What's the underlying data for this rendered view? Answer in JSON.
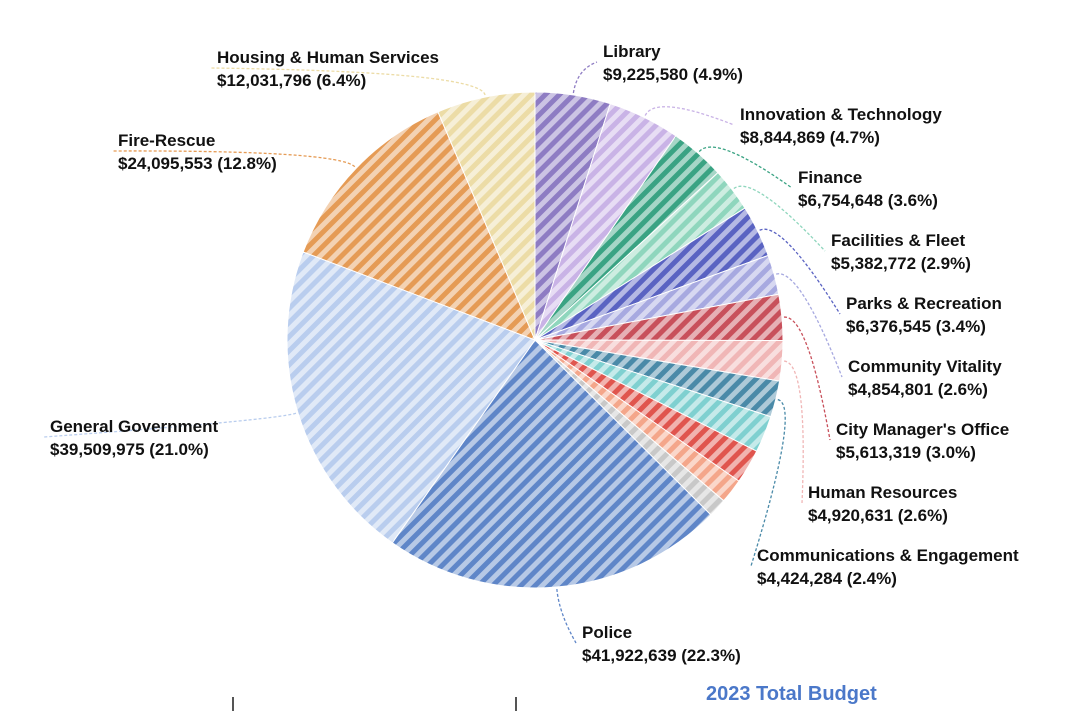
{
  "caption": "2023 Total Budget",
  "chart_data": {
    "type": "pie",
    "title": "",
    "unit": "$",
    "slices": [
      {
        "name": "Library",
        "value": 9225580,
        "value_label": "$9,225,580 (4.9%)",
        "color": "#8e7cc3"
      },
      {
        "name": "Innovation & Technology",
        "value": 8844869,
        "value_label": "$8,844,869 (4.7%)",
        "color": "#c9b3e6"
      },
      {
        "name": "Finance",
        "value": 6754648,
        "value_label": "$6,754,648 (3.6%)",
        "color": "#3aa383"
      },
      {
        "name": "Facilities & Fleet",
        "value": 5382772,
        "value_label": "$5,382,772 (2.9%)",
        "color": "#8fd6bd"
      },
      {
        "name": "Parks & Recreation",
        "value": 6376545,
        "value_label": "$6,376,545 (3.4%)",
        "color": "#5a63c2"
      },
      {
        "name": "Community Vitality",
        "value": 4854801,
        "value_label": "$4,854,801 (2.6%)",
        "color": "#a7a9e0"
      },
      {
        "name": "City Manager's Office",
        "value": 5613319,
        "value_label": "$5,613,319 (3.0%)",
        "color": "#c8505b"
      },
      {
        "name": "Human Resources",
        "value": 4920631,
        "value_label": "$4,920,631 (2.6%)",
        "color": "#f0b6b6"
      },
      {
        "name": "Communications & Engagement",
        "value": 4424284,
        "value_label": "$4,424,284 (2.4%)",
        "color": "#4a8aa8"
      },
      {
        "name": "unlabeled-teal",
        "value": 4500000,
        "value_label": "",
        "color": "#7fd0d0"
      },
      {
        "name": "unlabeled-red",
        "value": 4200000,
        "value_label": "",
        "color": "#e0554e"
      },
      {
        "name": "unlabeled-salmon",
        "value": 3000000,
        "value_label": "",
        "color": "#f4a68a"
      },
      {
        "name": "unlabeled-gray",
        "value": 2300000,
        "value_label": "",
        "color": "#c8c8c8"
      },
      {
        "name": "Police",
        "value": 41922639,
        "value_label": "$41,922,639 (22.3%)",
        "color": "#5f86c8"
      },
      {
        "name": "General Government",
        "value": 39509975,
        "value_label": "$39,509,975 (21.0%)",
        "color": "#b9cdee"
      },
      {
        "name": "Fire-Rescue",
        "value": 24095553,
        "value_label": "$24,095,553 (12.8%)",
        "color": "#e59b55"
      },
      {
        "name": "Housing & Human Services",
        "value": 12031796,
        "value_label": "$12,031,796 (6.4%)",
        "color": "#ecdca6"
      }
    ]
  }
}
